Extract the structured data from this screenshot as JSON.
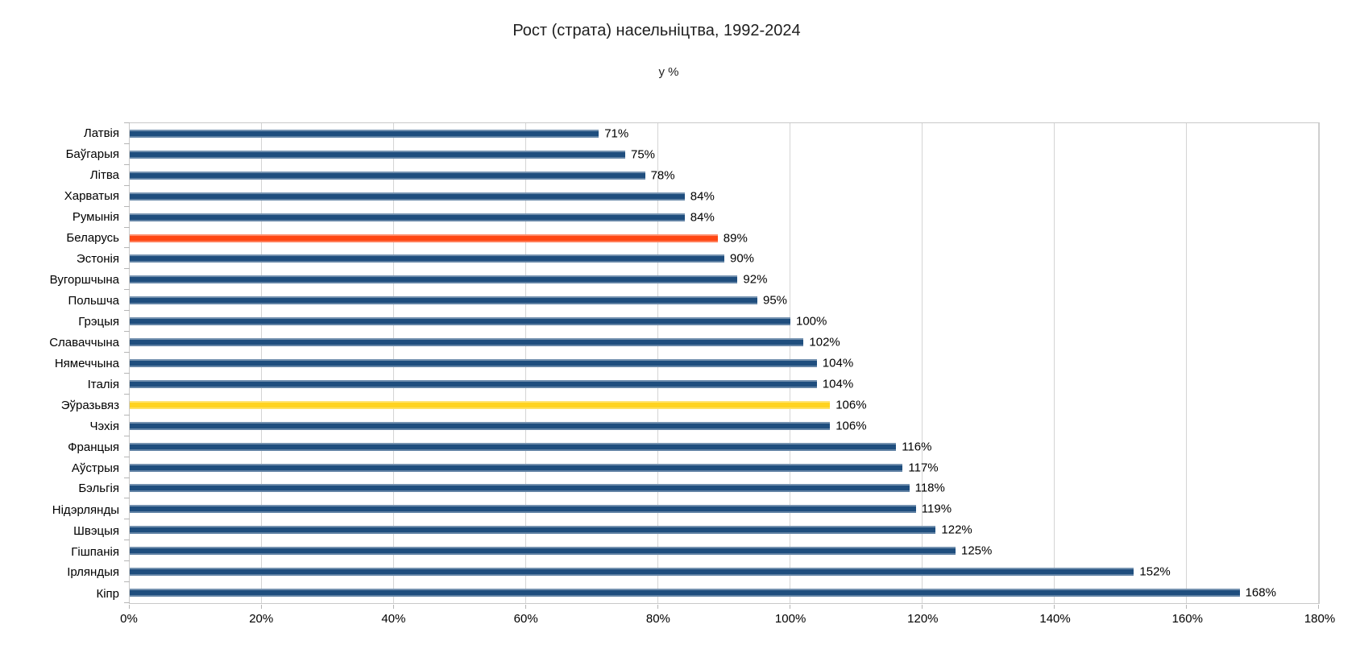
{
  "chart_data": {
    "type": "bar",
    "orientation": "horizontal",
    "title": "Рост (страта) насельніцтва, 1992-2024",
    "subtitle": "у %",
    "categories": [
      "Латвія",
      "Баўгарыя",
      "Літва",
      "Харватыя",
      "Румынія",
      "Беларусь",
      "Эстонія",
      "Вугоршчына",
      "Польшча",
      "Грэцыя",
      "Славаччына",
      "Нямеччына",
      "Італія",
      "Эўразьвяз",
      "Чэхія",
      "Францыя",
      "Аўстрыя",
      "Бэльгія",
      "Нідэрлянды",
      "Швэцыя",
      "Гішпанія",
      "Ірляндыя",
      "Кіпр"
    ],
    "values": [
      71,
      75,
      78,
      84,
      84,
      89,
      90,
      92,
      95,
      100,
      102,
      104,
      104,
      106,
      106,
      116,
      117,
      118,
      119,
      122,
      125,
      152,
      168
    ],
    "value_labels": [
      "71%",
      "75%",
      "78%",
      "84%",
      "84%",
      "89%",
      "90%",
      "92%",
      "95%",
      "100%",
      "102%",
      "104%",
      "104%",
      "106%",
      "106%",
      "116%",
      "117%",
      "118%",
      "119%",
      "122%",
      "125%",
      "152%",
      "168%"
    ],
    "default_bar_color": "#1F4E7E",
    "highlight_colors": {
      "5": "#FF4713",
      "13": "#FFD320"
    },
    "xlim": [
      0,
      180
    ],
    "x_ticks": [
      "0%",
      "20%",
      "40%",
      "60%",
      "80%",
      "100%",
      "120%",
      "140%",
      "160%",
      "180%"
    ],
    "x_tick_values": [
      0,
      20,
      40,
      60,
      80,
      100,
      120,
      140,
      160,
      180
    ],
    "grid": "vertical",
    "legend": "none",
    "colors": {
      "grid": "#d4d4d4",
      "plot_border": "#c9c9c9",
      "tick": "#b5b5b5",
      "text": "#000000"
    }
  }
}
